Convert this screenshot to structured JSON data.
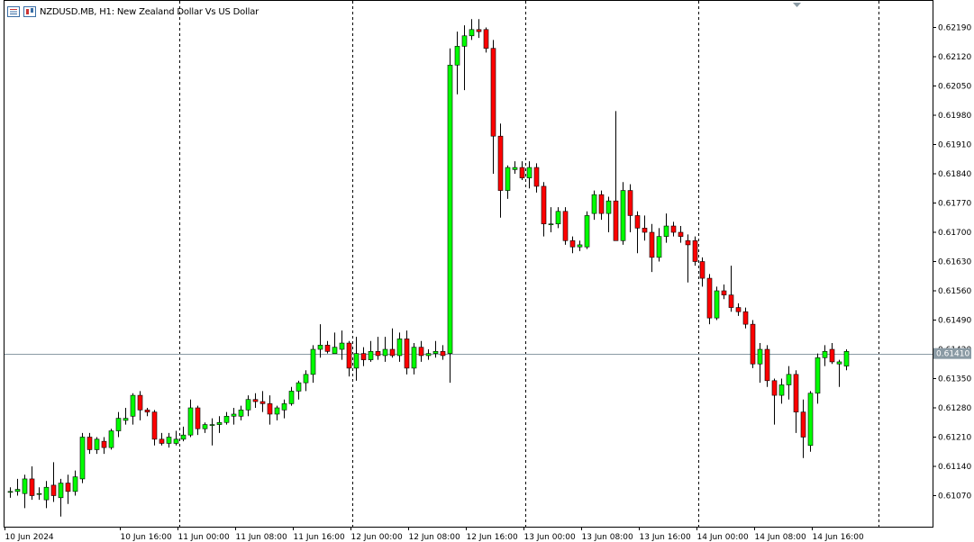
{
  "header": {
    "symbol": "NZDUSD.MB",
    "timeframe": "H1",
    "description": "New Zealand Dollar Vs US Dollar",
    "icons": [
      "chart-list-icon",
      "chart-type-icon"
    ]
  },
  "colors": {
    "bull": "#00ff00",
    "bear": "#ff0000",
    "candle_outline": "#000000",
    "grid_separator": "#000000",
    "bid_line": "#8a9aa4",
    "price_tag_bg": "#8a9aa4",
    "background": "#ffffff"
  },
  "chart_data": {
    "type": "candlestick",
    "title": "NZDUSD.MB, H1: New Zealand Dollar Vs US Dollar",
    "ylim": [
      0.61025,
      0.62235
    ],
    "y_ticks": [
      "0.62190",
      "0.62120",
      "0.62050",
      "0.61980",
      "0.61910",
      "0.61840",
      "0.61770",
      "0.61700",
      "0.61630",
      "0.61560",
      "0.61490",
      "0.61420",
      "0.61350",
      "0.61280",
      "0.61210",
      "0.61140",
      "0.61070"
    ],
    "x_ticks": [
      "10 Jun 2024",
      "10 Jun 16:00",
      "11 Jun 00:00",
      "11 Jun 08:00",
      "11 Jun 16:00",
      "12 Jun 00:00",
      "12 Jun 08:00",
      "12 Jun 16:00",
      "13 Jun 00:00",
      "13 Jun 08:00",
      "13 Jun 16:00",
      "14 Jun 00:00",
      "14 Jun 08:00",
      "14 Jun 16:00"
    ],
    "day_separators": [
      "11 Jun 00:00",
      "12 Jun 00:00",
      "13 Jun 00:00",
      "14 Jun 00:00",
      "15 Jun 00:00"
    ],
    "current_price": "0.61410",
    "candles": [
      {
        "t": "10 Jun 00:00",
        "o": 0.6108,
        "h": 0.6109,
        "l": 0.61065,
        "c": 0.6108
      },
      {
        "t": "10 Jun 01:00",
        "o": 0.6108,
        "h": 0.6111,
        "l": 0.6107,
        "c": 0.61085
      },
      {
        "t": "10 Jun 02:00",
        "o": 0.61075,
        "h": 0.6112,
        "l": 0.6104,
        "c": 0.6111
      },
      {
        "t": "10 Jun 03:00",
        "o": 0.6111,
        "h": 0.6114,
        "l": 0.6106,
        "c": 0.6107
      },
      {
        "t": "10 Jun 04:00",
        "o": 0.61075,
        "h": 0.6109,
        "l": 0.6106,
        "c": 0.61075
      },
      {
        "t": "10 Jun 05:00",
        "o": 0.6106,
        "h": 0.61105,
        "l": 0.6104,
        "c": 0.6109
      },
      {
        "t": "10 Jun 06:00",
        "o": 0.61095,
        "h": 0.6115,
        "l": 0.61055,
        "c": 0.6107
      },
      {
        "t": "10 Jun 07:00",
        "o": 0.61065,
        "h": 0.6111,
        "l": 0.6102,
        "c": 0.611
      },
      {
        "t": "10 Jun 08:00",
        "o": 0.611,
        "h": 0.6112,
        "l": 0.6105,
        "c": 0.6108
      },
      {
        "t": "10 Jun 09:00",
        "o": 0.6108,
        "h": 0.6113,
        "l": 0.6107,
        "c": 0.61115
      },
      {
        "t": "10 Jun 10:00",
        "o": 0.6111,
        "h": 0.6122,
        "l": 0.611,
        "c": 0.6121
      },
      {
        "t": "10 Jun 11:00",
        "o": 0.6121,
        "h": 0.6122,
        "l": 0.6117,
        "c": 0.6118
      },
      {
        "t": "10 Jun 12:00",
        "o": 0.6118,
        "h": 0.6121,
        "l": 0.6117,
        "c": 0.61205
      },
      {
        "t": "10 Jun 13:00",
        "o": 0.612,
        "h": 0.6121,
        "l": 0.6117,
        "c": 0.61185
      },
      {
        "t": "10 Jun 14:00",
        "o": 0.61185,
        "h": 0.6123,
        "l": 0.6118,
        "c": 0.61225
      },
      {
        "t": "10 Jun 15:00",
        "o": 0.61225,
        "h": 0.6127,
        "l": 0.6121,
        "c": 0.61255
      },
      {
        "t": "10 Jun 16:00",
        "o": 0.6125,
        "h": 0.6128,
        "l": 0.6124,
        "c": 0.61255
      },
      {
        "t": "10 Jun 17:00",
        "o": 0.6126,
        "h": 0.61315,
        "l": 0.6124,
        "c": 0.6131
      },
      {
        "t": "10 Jun 18:00",
        "o": 0.6131,
        "h": 0.6132,
        "l": 0.6125,
        "c": 0.61275
      },
      {
        "t": "10 Jun 19:00",
        "o": 0.61275,
        "h": 0.6128,
        "l": 0.6126,
        "c": 0.6127
      },
      {
        "t": "10 Jun 20:00",
        "o": 0.6127,
        "h": 0.61275,
        "l": 0.6119,
        "c": 0.61205
      },
      {
        "t": "10 Jun 21:00",
        "o": 0.61205,
        "h": 0.6122,
        "l": 0.6119,
        "c": 0.61195
      },
      {
        "t": "10 Jun 22:00",
        "o": 0.61195,
        "h": 0.6122,
        "l": 0.61185,
        "c": 0.6121
      },
      {
        "t": "10 Jun 23:00",
        "o": 0.61195,
        "h": 0.61225,
        "l": 0.6119,
        "c": 0.61205
      },
      {
        "t": "11 Jun 00:00",
        "o": 0.61205,
        "h": 0.61235,
        "l": 0.612,
        "c": 0.61215
      },
      {
        "t": "11 Jun 01:00",
        "o": 0.61215,
        "h": 0.613,
        "l": 0.6121,
        "c": 0.6128
      },
      {
        "t": "11 Jun 02:00",
        "o": 0.6128,
        "h": 0.61285,
        "l": 0.61215,
        "c": 0.6123
      },
      {
        "t": "11 Jun 03:00",
        "o": 0.6123,
        "h": 0.61245,
        "l": 0.6122,
        "c": 0.6124
      },
      {
        "t": "11 Jun 04:00",
        "o": 0.6124,
        "h": 0.61255,
        "l": 0.6119,
        "c": 0.6124
      },
      {
        "t": "11 Jun 05:00",
        "o": 0.6124,
        "h": 0.6126,
        "l": 0.6122,
        "c": 0.61245
      },
      {
        "t": "11 Jun 06:00",
        "o": 0.61245,
        "h": 0.6127,
        "l": 0.6124,
        "c": 0.6126
      },
      {
        "t": "11 Jun 07:00",
        "o": 0.6126,
        "h": 0.6128,
        "l": 0.6124,
        "c": 0.61265
      },
      {
        "t": "11 Jun 08:00",
        "o": 0.6126,
        "h": 0.61285,
        "l": 0.6125,
        "c": 0.61275
      },
      {
        "t": "11 Jun 09:00",
        "o": 0.61275,
        "h": 0.6131,
        "l": 0.6126,
        "c": 0.613
      },
      {
        "t": "11 Jun 10:00",
        "o": 0.613,
        "h": 0.61315,
        "l": 0.6128,
        "c": 0.61295
      },
      {
        "t": "11 Jun 11:00",
        "o": 0.61295,
        "h": 0.6132,
        "l": 0.6127,
        "c": 0.6129
      },
      {
        "t": "11 Jun 12:00",
        "o": 0.6129,
        "h": 0.6131,
        "l": 0.6124,
        "c": 0.61265
      },
      {
        "t": "11 Jun 13:00",
        "o": 0.61265,
        "h": 0.61285,
        "l": 0.6125,
        "c": 0.6128
      },
      {
        "t": "11 Jun 14:00",
        "o": 0.61275,
        "h": 0.613,
        "l": 0.61255,
        "c": 0.6129
      },
      {
        "t": "11 Jun 15:00",
        "o": 0.6129,
        "h": 0.6133,
        "l": 0.61285,
        "c": 0.6132
      },
      {
        "t": "11 Jun 16:00",
        "o": 0.6132,
        "h": 0.61345,
        "l": 0.613,
        "c": 0.6134
      },
      {
        "t": "11 Jun 17:00",
        "o": 0.6134,
        "h": 0.6137,
        "l": 0.6132,
        "c": 0.6136
      },
      {
        "t": "11 Jun 18:00",
        "o": 0.6136,
        "h": 0.6143,
        "l": 0.6134,
        "c": 0.6142
      },
      {
        "t": "11 Jun 19:00",
        "o": 0.6142,
        "h": 0.6148,
        "l": 0.614,
        "c": 0.6143
      },
      {
        "t": "11 Jun 20:00",
        "o": 0.6143,
        "h": 0.6144,
        "l": 0.6141,
        "c": 0.61415
      },
      {
        "t": "11 Jun 21:00",
        "o": 0.6141,
        "h": 0.6146,
        "l": 0.6141,
        "c": 0.61425
      },
      {
        "t": "11 Jun 22:00",
        "o": 0.6142,
        "h": 0.61465,
        "l": 0.61395,
        "c": 0.61435
      },
      {
        "t": "11 Jun 23:00",
        "o": 0.61435,
        "h": 0.6144,
        "l": 0.61355,
        "c": 0.61375
      },
      {
        "t": "12 Jun 00:00",
        "o": 0.61375,
        "h": 0.6145,
        "l": 0.61345,
        "c": 0.6141
      },
      {
        "t": "12 Jun 01:00",
        "o": 0.6141,
        "h": 0.61425,
        "l": 0.6138,
        "c": 0.61395
      },
      {
        "t": "12 Jun 02:00",
        "o": 0.61395,
        "h": 0.6144,
        "l": 0.6139,
        "c": 0.61415
      },
      {
        "t": "12 Jun 03:00",
        "o": 0.61415,
        "h": 0.6145,
        "l": 0.61395,
        "c": 0.61405
      },
      {
        "t": "12 Jun 04:00",
        "o": 0.61405,
        "h": 0.6145,
        "l": 0.6139,
        "c": 0.6142
      },
      {
        "t": "12 Jun 05:00",
        "o": 0.6142,
        "h": 0.6147,
        "l": 0.614,
        "c": 0.61405
      },
      {
        "t": "12 Jun 06:00",
        "o": 0.61405,
        "h": 0.6146,
        "l": 0.6139,
        "c": 0.61445
      },
      {
        "t": "12 Jun 07:00",
        "o": 0.61445,
        "h": 0.61465,
        "l": 0.6136,
        "c": 0.61375
      },
      {
        "t": "12 Jun 08:00",
        "o": 0.61375,
        "h": 0.61435,
        "l": 0.6136,
        "c": 0.61425
      },
      {
        "t": "12 Jun 09:00",
        "o": 0.61425,
        "h": 0.6144,
        "l": 0.6139,
        "c": 0.61405
      },
      {
        "t": "12 Jun 10:00",
        "o": 0.61405,
        "h": 0.6142,
        "l": 0.61395,
        "c": 0.6141
      },
      {
        "t": "12 Jun 11:00",
        "o": 0.6141,
        "h": 0.6144,
        "l": 0.614,
        "c": 0.61415
      },
      {
        "t": "12 Jun 12:00",
        "o": 0.61415,
        "h": 0.6143,
        "l": 0.61395,
        "c": 0.61405
      },
      {
        "t": "12 Jun 13:00",
        "o": 0.6141,
        "h": 0.6214,
        "l": 0.6134,
        "c": 0.621
      },
      {
        "t": "12 Jun 14:00",
        "o": 0.621,
        "h": 0.6218,
        "l": 0.6203,
        "c": 0.62145
      },
      {
        "t": "12 Jun 15:00",
        "o": 0.62145,
        "h": 0.62195,
        "l": 0.6204,
        "c": 0.6217
      },
      {
        "t": "12 Jun 16:00",
        "o": 0.6217,
        "h": 0.6221,
        "l": 0.6216,
        "c": 0.62185
      },
      {
        "t": "12 Jun 17:00",
        "o": 0.62185,
        "h": 0.6221,
        "l": 0.62165,
        "c": 0.6218
      },
      {
        "t": "12 Jun 18:00",
        "o": 0.62185,
        "h": 0.6219,
        "l": 0.6213,
        "c": 0.6214
      },
      {
        "t": "12 Jun 19:00",
        "o": 0.6214,
        "h": 0.6216,
        "l": 0.6184,
        "c": 0.6193
      },
      {
        "t": "12 Jun 20:00",
        "o": 0.6193,
        "h": 0.6196,
        "l": 0.61735,
        "c": 0.618
      },
      {
        "t": "12 Jun 21:00",
        "o": 0.618,
        "h": 0.6186,
        "l": 0.6178,
        "c": 0.61855
      },
      {
        "t": "12 Jun 22:00",
        "o": 0.6185,
        "h": 0.6187,
        "l": 0.6184,
        "c": 0.61855
      },
      {
        "t": "12 Jun 23:00",
        "o": 0.61855,
        "h": 0.6187,
        "l": 0.61825,
        "c": 0.6183
      },
      {
        "t": "13 Jun 00:00",
        "o": 0.6183,
        "h": 0.6187,
        "l": 0.61805,
        "c": 0.61855
      },
      {
        "t": "13 Jun 01:00",
        "o": 0.61855,
        "h": 0.61865,
        "l": 0.61795,
        "c": 0.6181
      },
      {
        "t": "13 Jun 02:00",
        "o": 0.6181,
        "h": 0.6182,
        "l": 0.6169,
        "c": 0.6172
      },
      {
        "t": "13 Jun 03:00",
        "o": 0.6172,
        "h": 0.6176,
        "l": 0.617,
        "c": 0.6172
      },
      {
        "t": "13 Jun 04:00",
        "o": 0.6172,
        "h": 0.6176,
        "l": 0.6171,
        "c": 0.6175
      },
      {
        "t": "13 Jun 05:00",
        "o": 0.6175,
        "h": 0.6176,
        "l": 0.6167,
        "c": 0.6168
      },
      {
        "t": "13 Jun 06:00",
        "o": 0.6168,
        "h": 0.6169,
        "l": 0.6165,
        "c": 0.61665
      },
      {
        "t": "13 Jun 07:00",
        "o": 0.61665,
        "h": 0.6168,
        "l": 0.61655,
        "c": 0.6167
      },
      {
        "t": "13 Jun 08:00",
        "o": 0.61665,
        "h": 0.6175,
        "l": 0.6166,
        "c": 0.6174
      },
      {
        "t": "13 Jun 09:00",
        "o": 0.61745,
        "h": 0.618,
        "l": 0.6173,
        "c": 0.6179
      },
      {
        "t": "13 Jun 10:00",
        "o": 0.6179,
        "h": 0.618,
        "l": 0.6173,
        "c": 0.61745
      },
      {
        "t": "13 Jun 11:00",
        "o": 0.61745,
        "h": 0.61785,
        "l": 0.617,
        "c": 0.61775
      },
      {
        "t": "13 Jun 12:00",
        "o": 0.61775,
        "h": 0.6199,
        "l": 0.6168,
        "c": 0.6168
      },
      {
        "t": "13 Jun 13:00",
        "o": 0.6168,
        "h": 0.6182,
        "l": 0.6167,
        "c": 0.618
      },
      {
        "t": "13 Jun 14:00",
        "o": 0.618,
        "h": 0.61815,
        "l": 0.617,
        "c": 0.6174
      },
      {
        "t": "13 Jun 15:00",
        "o": 0.6174,
        "h": 0.6175,
        "l": 0.6165,
        "c": 0.6171
      },
      {
        "t": "13 Jun 16:00",
        "o": 0.6171,
        "h": 0.6174,
        "l": 0.6168,
        "c": 0.617
      },
      {
        "t": "13 Jun 17:00",
        "o": 0.617,
        "h": 0.6172,
        "l": 0.61605,
        "c": 0.6164
      },
      {
        "t": "13 Jun 18:00",
        "o": 0.6164,
        "h": 0.6171,
        "l": 0.6163,
        "c": 0.6169
      },
      {
        "t": "13 Jun 19:00",
        "o": 0.6169,
        "h": 0.61745,
        "l": 0.61675,
        "c": 0.61715
      },
      {
        "t": "13 Jun 20:00",
        "o": 0.61715,
        "h": 0.61725,
        "l": 0.6169,
        "c": 0.617
      },
      {
        "t": "13 Jun 21:00",
        "o": 0.617,
        "h": 0.61715,
        "l": 0.61675,
        "c": 0.6169
      },
      {
        "t": "13 Jun 22:00",
        "o": 0.6168,
        "h": 0.61695,
        "l": 0.6158,
        "c": 0.6167
      },
      {
        "t": "13 Jun 23:00",
        "o": 0.6168,
        "h": 0.6169,
        "l": 0.6162,
        "c": 0.6163
      },
      {
        "t": "14 Jun 00:00",
        "o": 0.6163,
        "h": 0.6164,
        "l": 0.6157,
        "c": 0.6159
      },
      {
        "t": "14 Jun 01:00",
        "o": 0.6159,
        "h": 0.616,
        "l": 0.6148,
        "c": 0.61495
      },
      {
        "t": "14 Jun 02:00",
        "o": 0.61495,
        "h": 0.6157,
        "l": 0.6149,
        "c": 0.6156
      },
      {
        "t": "14 Jun 03:00",
        "o": 0.6156,
        "h": 0.61575,
        "l": 0.6154,
        "c": 0.6155
      },
      {
        "t": "14 Jun 04:00",
        "o": 0.6155,
        "h": 0.6162,
        "l": 0.6151,
        "c": 0.6152
      },
      {
        "t": "14 Jun 05:00",
        "o": 0.6152,
        "h": 0.6153,
        "l": 0.615,
        "c": 0.6151
      },
      {
        "t": "14 Jun 06:00",
        "o": 0.6151,
        "h": 0.6152,
        "l": 0.6147,
        "c": 0.6148
      },
      {
        "t": "14 Jun 07:00",
        "o": 0.6148,
        "h": 0.6149,
        "l": 0.61375,
        "c": 0.61385
      },
      {
        "t": "14 Jun 08:00",
        "o": 0.61385,
        "h": 0.61435,
        "l": 0.6134,
        "c": 0.6142
      },
      {
        "t": "14 Jun 09:00",
        "o": 0.6142,
        "h": 0.6143,
        "l": 0.6133,
        "c": 0.61345
      },
      {
        "t": "14 Jun 10:00",
        "o": 0.61345,
        "h": 0.6135,
        "l": 0.6124,
        "c": 0.6131
      },
      {
        "t": "14 Jun 11:00",
        "o": 0.6131,
        "h": 0.6135,
        "l": 0.6129,
        "c": 0.61335
      },
      {
        "t": "14 Jun 12:00",
        "o": 0.61335,
        "h": 0.6138,
        "l": 0.613,
        "c": 0.6136
      },
      {
        "t": "14 Jun 13:00",
        "o": 0.6136,
        "h": 0.6137,
        "l": 0.6122,
        "c": 0.6127
      },
      {
        "t": "14 Jun 14:00",
        "o": 0.6127,
        "h": 0.613,
        "l": 0.6116,
        "c": 0.6121
      },
      {
        "t": "14 Jun 15:00",
        "o": 0.6119,
        "h": 0.6132,
        "l": 0.61175,
        "c": 0.61315
      },
      {
        "t": "14 Jun 16:00",
        "o": 0.61315,
        "h": 0.6141,
        "l": 0.6129,
        "c": 0.614
      },
      {
        "t": "14 Jun 17:00",
        "o": 0.614,
        "h": 0.6143,
        "l": 0.6138,
        "c": 0.61415
      },
      {
        "t": "14 Jun 18:00",
        "o": 0.6142,
        "h": 0.61435,
        "l": 0.61385,
        "c": 0.6139
      },
      {
        "t": "14 Jun 19:00",
        "o": 0.61385,
        "h": 0.61395,
        "l": 0.6133,
        "c": 0.6139
      },
      {
        "t": "14 Jun 20:00",
        "o": 0.6138,
        "h": 0.6142,
        "l": 0.6137,
        "c": 0.61415
      }
    ]
  }
}
